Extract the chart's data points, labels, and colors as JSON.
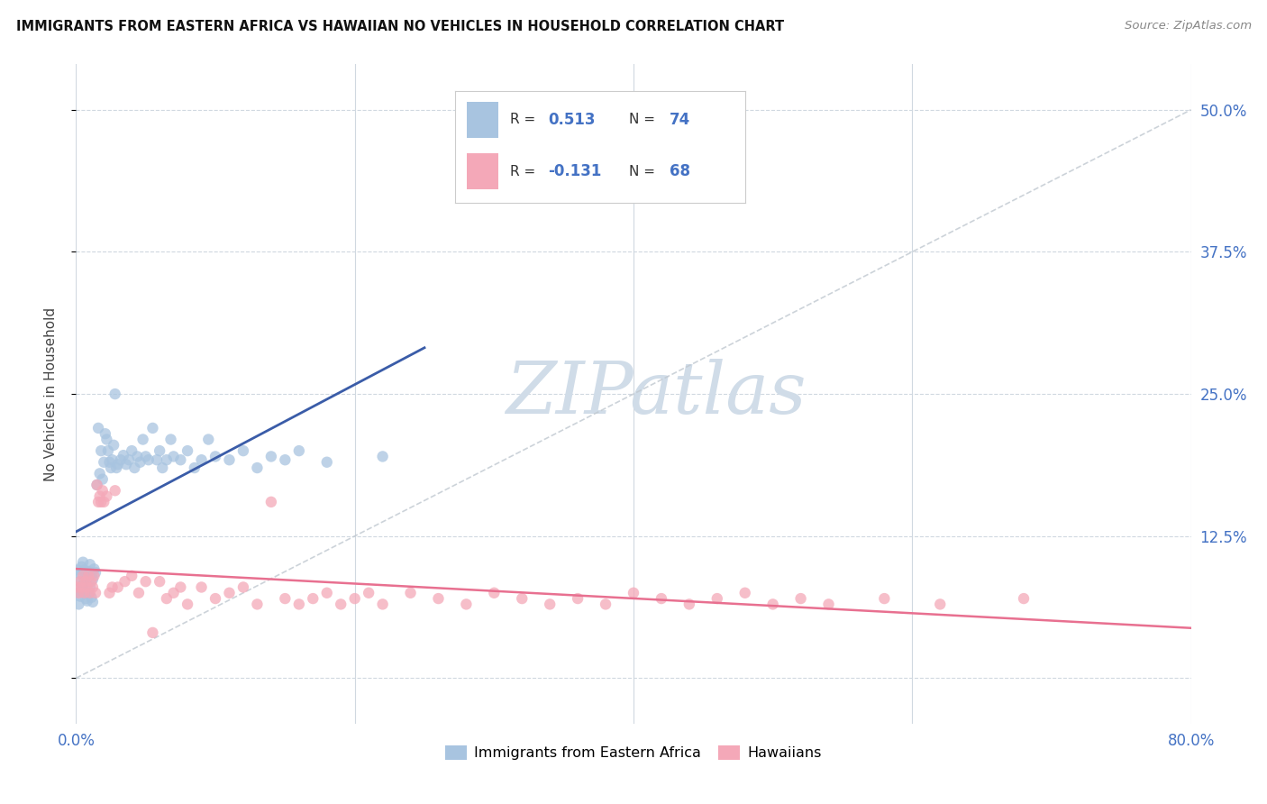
{
  "title": "IMMIGRANTS FROM EASTERN AFRICA VS HAWAIIAN NO VEHICLES IN HOUSEHOLD CORRELATION CHART",
  "source": "Source: ZipAtlas.com",
  "ylabel": "No Vehicles in Household",
  "xmin": 0.0,
  "xmax": 0.8,
  "ymin": -0.04,
  "ymax": 0.54,
  "ytick_vals": [
    0.0,
    0.125,
    0.25,
    0.375,
    0.5
  ],
  "ytick_labels": [
    "",
    "12.5%",
    "25.0%",
    "37.5%",
    "50.0%"
  ],
  "xtick_vals": [
    0.0,
    0.2,
    0.4,
    0.6,
    0.8
  ],
  "xtick_labels_bottom": [
    "0.0%",
    "",
    "",
    "",
    "80.0%"
  ],
  "blue_R": 0.513,
  "blue_N": 74,
  "pink_R": -0.131,
  "pink_N": 68,
  "blue_color": "#a8c4e0",
  "pink_color": "#f4a8b8",
  "blue_line_color": "#3a5ca8",
  "pink_line_color": "#e87090",
  "diagonal_line_color": "#c0c8d0",
  "watermark_color": "#d0dce8",
  "legend_label_blue": "Immigrants from Eastern Africa",
  "legend_label_pink": "Hawaiians",
  "blue_scatter_x": [
    0.001,
    0.001,
    0.002,
    0.002,
    0.003,
    0.003,
    0.004,
    0.004,
    0.005,
    0.005,
    0.006,
    0.006,
    0.007,
    0.007,
    0.008,
    0.008,
    0.009,
    0.009,
    0.01,
    0.01,
    0.011,
    0.011,
    0.012,
    0.012,
    0.013,
    0.014,
    0.015,
    0.016,
    0.017,
    0.018,
    0.019,
    0.02,
    0.021,
    0.022,
    0.023,
    0.024,
    0.025,
    0.026,
    0.027,
    0.028,
    0.029,
    0.03,
    0.032,
    0.034,
    0.036,
    0.038,
    0.04,
    0.042,
    0.044,
    0.046,
    0.048,
    0.05,
    0.052,
    0.055,
    0.058,
    0.06,
    0.062,
    0.065,
    0.068,
    0.07,
    0.075,
    0.08,
    0.085,
    0.09,
    0.095,
    0.1,
    0.11,
    0.12,
    0.13,
    0.14,
    0.15,
    0.16,
    0.18,
    0.22
  ],
  "blue_scatter_y": [
    0.095,
    0.075,
    0.085,
    0.065,
    0.092,
    0.072,
    0.098,
    0.078,
    0.102,
    0.082,
    0.095,
    0.075,
    0.09,
    0.07,
    0.088,
    0.068,
    0.094,
    0.074,
    0.1,
    0.08,
    0.091,
    0.071,
    0.087,
    0.067,
    0.096,
    0.093,
    0.17,
    0.22,
    0.18,
    0.2,
    0.175,
    0.19,
    0.215,
    0.21,
    0.2,
    0.19,
    0.185,
    0.192,
    0.205,
    0.25,
    0.185,
    0.188,
    0.192,
    0.196,
    0.188,
    0.192,
    0.2,
    0.185,
    0.195,
    0.19,
    0.21,
    0.195,
    0.192,
    0.22,
    0.192,
    0.2,
    0.185,
    0.192,
    0.21,
    0.195,
    0.192,
    0.2,
    0.185,
    0.192,
    0.21,
    0.195,
    0.192,
    0.2,
    0.185,
    0.195,
    0.192,
    0.2,
    0.19,
    0.195
  ],
  "pink_scatter_x": [
    0.001,
    0.002,
    0.003,
    0.004,
    0.005,
    0.006,
    0.007,
    0.008,
    0.009,
    0.01,
    0.011,
    0.012,
    0.013,
    0.014,
    0.015,
    0.016,
    0.017,
    0.018,
    0.019,
    0.02,
    0.022,
    0.024,
    0.026,
    0.028,
    0.03,
    0.035,
    0.04,
    0.045,
    0.05,
    0.055,
    0.06,
    0.065,
    0.07,
    0.075,
    0.08,
    0.09,
    0.1,
    0.11,
    0.12,
    0.13,
    0.14,
    0.15,
    0.16,
    0.17,
    0.18,
    0.19,
    0.2,
    0.21,
    0.22,
    0.24,
    0.26,
    0.28,
    0.3,
    0.32,
    0.34,
    0.36,
    0.38,
    0.4,
    0.42,
    0.44,
    0.46,
    0.48,
    0.5,
    0.52,
    0.54,
    0.58,
    0.62,
    0.68
  ],
  "pink_scatter_y": [
    0.08,
    0.075,
    0.085,
    0.08,
    0.09,
    0.075,
    0.085,
    0.08,
    0.09,
    0.075,
    0.085,
    0.08,
    0.09,
    0.075,
    0.17,
    0.155,
    0.16,
    0.155,
    0.165,
    0.155,
    0.16,
    0.075,
    0.08,
    0.165,
    0.08,
    0.085,
    0.09,
    0.075,
    0.085,
    0.04,
    0.085,
    0.07,
    0.075,
    0.08,
    0.065,
    0.08,
    0.07,
    0.075,
    0.08,
    0.065,
    0.155,
    0.07,
    0.065,
    0.07,
    0.075,
    0.065,
    0.07,
    0.075,
    0.065,
    0.075,
    0.07,
    0.065,
    0.075,
    0.07,
    0.065,
    0.07,
    0.065,
    0.075,
    0.07,
    0.065,
    0.07,
    0.075,
    0.065,
    0.07,
    0.065,
    0.07,
    0.065,
    0.07
  ]
}
